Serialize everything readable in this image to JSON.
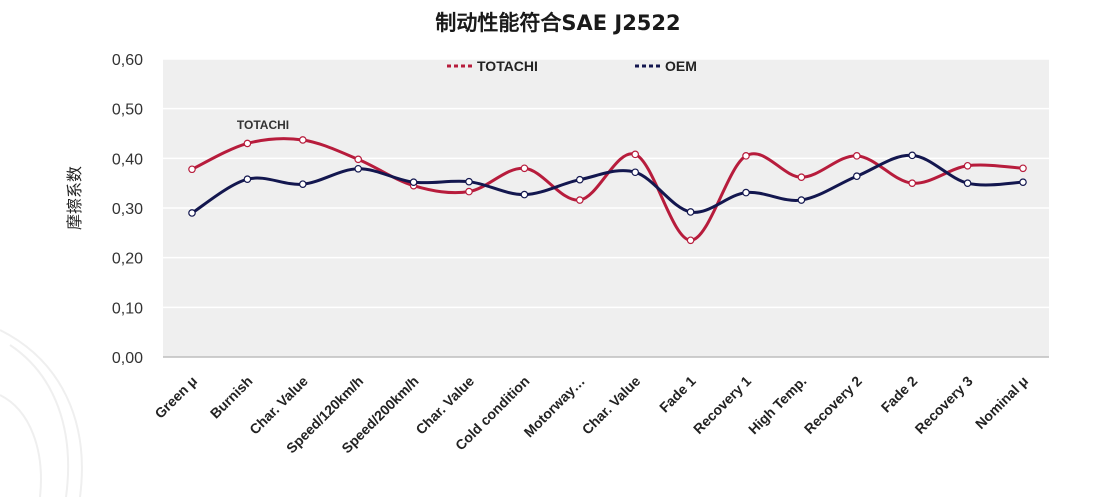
{
  "chart_data": {
    "type": "line",
    "title": "制动性能符合SAE J2522",
    "ylabel": "摩擦系数",
    "xlabel": "",
    "ylim": [
      0,
      0.6
    ],
    "yticks": [
      "0,00",
      "0,10",
      "0,20",
      "0,30",
      "0,40",
      "0,50",
      "0,60"
    ],
    "categories": [
      "Green μ",
      "Burnish",
      "Char. Value",
      "Speed/120km/h",
      "Speed/200km/h",
      "Char. Value",
      "Cold condition",
      "Motorway…",
      "Char. Value",
      "Fade 1",
      "Recovery  1",
      "High Temp.",
      "Recovery  2",
      "Fade 2",
      "Recovery  3",
      "Nominal μ"
    ],
    "series": [
      {
        "name": "TOTACHI",
        "color": "#b71c3c",
        "values": [
          0.378,
          0.43,
          0.437,
          0.398,
          0.345,
          0.333,
          0.38,
          0.316,
          0.408,
          0.235,
          0.405,
          0.362,
          0.405,
          0.35,
          0.385,
          0.38
        ]
      },
      {
        "name": "OEM",
        "color": "#13174f",
        "values": [
          0.29,
          0.358,
          0.348,
          0.379,
          0.352,
          0.353,
          0.327,
          0.357,
          0.372,
          0.292,
          0.331,
          0.316,
          0.364,
          0.406,
          0.35,
          0.352
        ]
      }
    ],
    "annotations": [
      {
        "text": "TOTACHI"
      }
    ],
    "grid": "horizontal",
    "legend_position": "top"
  }
}
